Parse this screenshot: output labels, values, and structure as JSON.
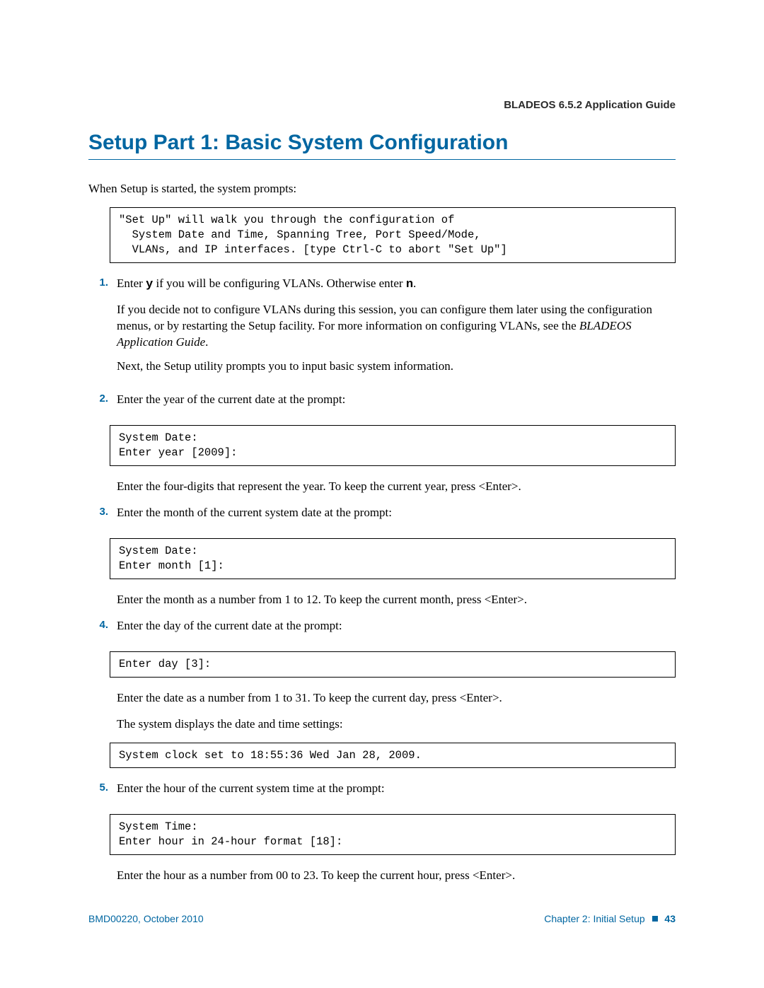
{
  "header": {
    "doc_title": "BLADEOS 6.5.2 Application Guide"
  },
  "title": "Setup Part 1: Basic System Configuration",
  "intro": "When Setup is started, the system prompts:",
  "code_intro": "\"Set Up\" will walk you through the configuration of\n  System Date and Time, Spanning Tree, Port Speed/Mode,\n  VLANs, and IP interfaces. [type Ctrl-C to abort \"Set Up\"]",
  "steps": {
    "s1": {
      "num": "1.",
      "line_a": "Enter ",
      "bold_y": "y",
      "line_b": " if you will be configuring VLANs. Otherwise enter ",
      "bold_n": "n",
      "line_c": ".",
      "para2_a": "If you decide not to configure VLANs during this session, you can configure them later using the configuration menus, or by restarting the Setup facility. For more information on configuring VLANs, see the ",
      "para2_italic": "BLADEOS Application Guide",
      "para2_b": ".",
      "para3": "Next, the Setup utility prompts you to input basic system information."
    },
    "s2": {
      "num": "2.",
      "line": "Enter the year of the current date at the prompt:",
      "code": "System Date:\nEnter year [2009]:",
      "after": "Enter the four-digits that represent the year. To keep the current year, press <Enter>."
    },
    "s3": {
      "num": "3.",
      "line": "Enter the month of the current system date at the prompt:",
      "code": "System Date:\nEnter month [1]:",
      "after": "Enter the month as a number from 1 to 12. To keep the current month, press <Enter>."
    },
    "s4": {
      "num": "4.",
      "line": "Enter the day of the current date at the prompt:",
      "code": "Enter day [3]:",
      "after1": "Enter the date as a number from 1 to 31. To keep the current day, press <Enter>.",
      "after2": "The system displays the date and time settings:",
      "code2": "System clock set to 18:55:36 Wed Jan 28, 2009."
    },
    "s5": {
      "num": "5.",
      "line": "Enter the hour of the current system time at the prompt:",
      "code": "System Time:\nEnter hour in 24-hour format [18]:",
      "after": "Enter the hour as a number from 00 to 23. To keep the current hour, press <Enter>."
    }
  },
  "footer": {
    "left": "BMD00220, October 2010",
    "right_chapter": "Chapter 2: Initial Setup",
    "right_page": "43"
  },
  "colors": {
    "accent": "#0066a1",
    "text": "#000000",
    "bg": "#ffffff"
  }
}
